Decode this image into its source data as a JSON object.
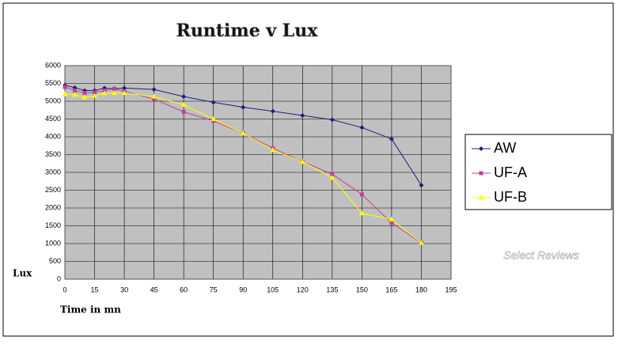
{
  "chart_data": {
    "type": "line",
    "title": "Runtime v Lux",
    "x_label": "Time in mn",
    "y_label": "Lux",
    "watermark": "Select Reviews",
    "x": [
      0,
      5,
      10,
      15,
      20,
      25,
      30,
      45,
      60,
      75,
      90,
      105,
      120,
      135,
      150,
      165,
      180
    ],
    "series": [
      {
        "name": "AW",
        "color": "#1f1f7a",
        "marker": "diamond",
        "values": [
          5450,
          5380,
          5300,
          5300,
          5370,
          5350,
          5370,
          5330,
          5130,
          4970,
          4830,
          4720,
          4600,
          4480,
          4260,
          3940,
          2640
        ]
      },
      {
        "name": "UF-A",
        "color": "#c040a0",
        "marker": "square",
        "values": [
          5400,
          5300,
          5230,
          5250,
          5300,
          5350,
          5280,
          5060,
          4700,
          4450,
          4100,
          3680,
          3300,
          2950,
          2380,
          1580,
          1020
        ]
      },
      {
        "name": "UF-B",
        "color": "#ffff00",
        "marker": "triangle",
        "values": [
          5200,
          5180,
          5110,
          5150,
          5230,
          5230,
          5230,
          5130,
          4900,
          4500,
          4100,
          3630,
          3300,
          2850,
          1850,
          1680,
          1020
        ]
      }
    ],
    "xlim": [
      0,
      195
    ],
    "xticks": [
      0,
      15,
      30,
      45,
      60,
      75,
      90,
      105,
      120,
      135,
      150,
      165,
      180,
      195
    ],
    "ylim": [
      0,
      6000
    ],
    "yticks": [
      0,
      500,
      1000,
      1500,
      2000,
      2500,
      3000,
      3500,
      4000,
      4500,
      5000,
      5500,
      6000
    ],
    "grid": true,
    "legend": "right"
  }
}
